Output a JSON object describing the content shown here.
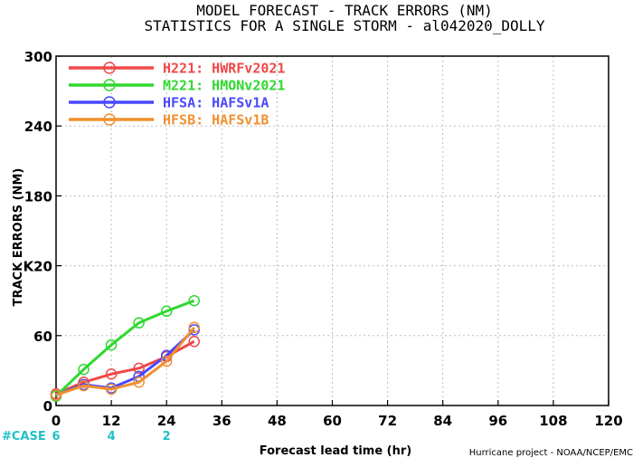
{
  "titles": {
    "line1": "MODEL FORECAST - TRACK ERRORS (NM)",
    "line2": "STATISTICS FOR A SINGLE STORM - al042020_DOLLY"
  },
  "case_label": "#CASE",
  "credit": "Hurricane project - NOAA/NCEP/EMC",
  "chart_data": {
    "type": "line",
    "xlabel": "Forecast lead time (hr)",
    "ylabel": "TRACK ERRORS (NM)",
    "xlim": [
      0,
      120
    ],
    "ylim": [
      0,
      300
    ],
    "xticks": [
      0,
      12,
      24,
      36,
      48,
      60,
      72,
      84,
      96,
      108,
      120
    ],
    "yticks": [
      0,
      60,
      120,
      180,
      240,
      300
    ],
    "ytick_labels": [
      "0",
      "60",
      "K20",
      "180",
      "240",
      "300"
    ],
    "grid": true,
    "legend": "top-left",
    "x": [
      0,
      6,
      12,
      18,
      24,
      30
    ],
    "series": [
      {
        "name": "H221:",
        "label": "HWRFv2021",
        "color": "#f04848",
        "values": [
          10,
          20,
          27,
          32,
          42,
          55
        ]
      },
      {
        "name": "M221:",
        "label": "HMONv2021",
        "color": "#30d830",
        "values": [
          8,
          31,
          52,
          71,
          81,
          90
        ]
      },
      {
        "name": "HFSA:",
        "label": "HAFSv1A",
        "color": "#4848ff",
        "values": [
          9,
          18,
          15,
          25,
          43,
          65
        ]
      },
      {
        "name": "HFSB:",
        "label": "HAFSv1B",
        "color": "#f09030",
        "values": [
          9,
          17,
          14,
          20,
          38,
          67
        ]
      }
    ],
    "case_counts": [
      {
        "x": 0,
        "n": "6"
      },
      {
        "x": 12,
        "n": "4"
      },
      {
        "x": 24,
        "n": "2"
      }
    ]
  }
}
